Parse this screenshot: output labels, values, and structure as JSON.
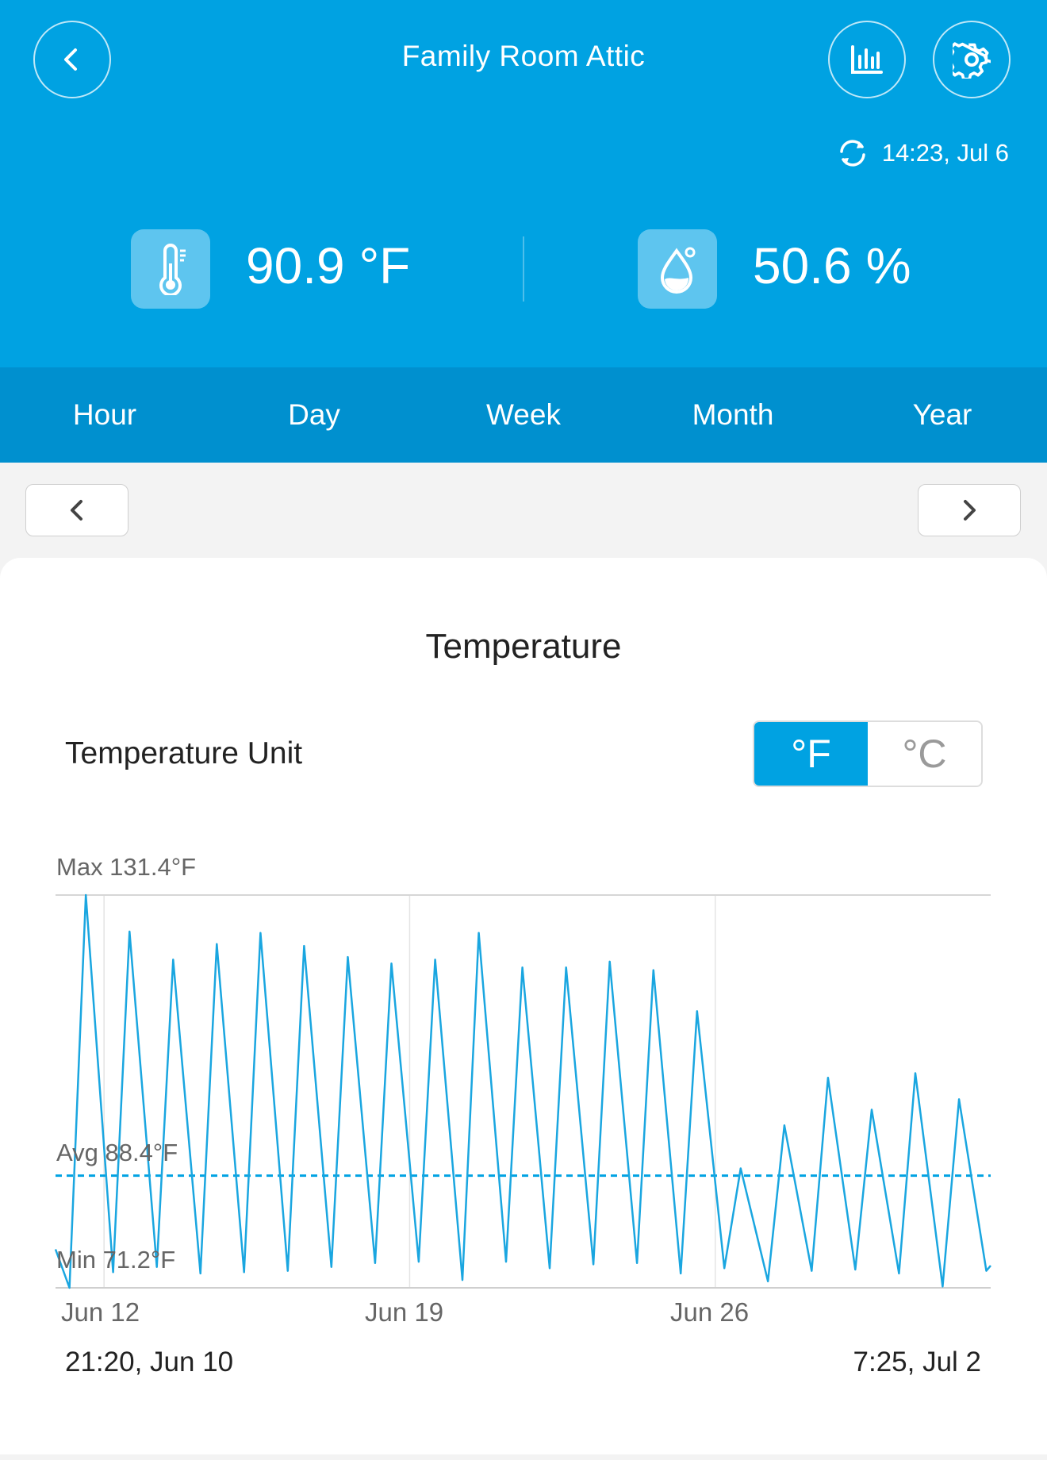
{
  "header": {
    "title": "Family Room Attic",
    "sync_time": "14:23,  Jul 6",
    "temperature": {
      "value": "90.9",
      "unit": "°F"
    },
    "humidity": {
      "value": "50.6",
      "unit": "%"
    }
  },
  "tabs": [
    "Hour",
    "Day",
    "Week",
    "Month",
    "Year"
  ],
  "card": {
    "title": "Temperature",
    "unit_label": "Temperature Unit",
    "unit_options": [
      "°F",
      "°C"
    ],
    "selected_unit": "°F",
    "range_start": "21:20,  Jun 10",
    "range_end": "7:25,  Jul 2"
  },
  "colors": {
    "primary": "#00a2e2",
    "tabbar": "#0090cf",
    "line": "#1aa6e0"
  },
  "chart_data": {
    "type": "line",
    "title": "",
    "max_label": "Max 131.4°F",
    "avg_label": "Avg 88.4°F",
    "min_label": "Min 71.2°F",
    "max": 131.4,
    "avg": 88.4,
    "min": 71.2,
    "ylim": [
      71.2,
      131.4
    ],
    "xlim": [
      "Jun 10 21:20",
      "Jul 2 07:25"
    ],
    "x_ticks": [
      "Jun 12",
      "Jun 19",
      "Jun 26"
    ],
    "grid": true,
    "daily_peaks": [
      {
        "x": "Jun 11 14:00",
        "y": 131.4
      },
      {
        "x": "Jun 12 14:00",
        "y": 125.8
      },
      {
        "x": "Jun 13 14:00",
        "y": 121.5
      },
      {
        "x": "Jun 14 14:00",
        "y": 123.9
      },
      {
        "x": "Jun 15 14:00",
        "y": 125.6
      },
      {
        "x": "Jun 16 14:00",
        "y": 123.6
      },
      {
        "x": "Jun 17 14:00",
        "y": 121.9
      },
      {
        "x": "Jun 18 14:00",
        "y": 120.9
      },
      {
        "x": "Jun 19 14:00",
        "y": 121.5
      },
      {
        "x": "Jun 20 14:00",
        "y": 125.6
      },
      {
        "x": "Jun 21 14:00",
        "y": 120.3
      },
      {
        "x": "Jun 22 14:00",
        "y": 120.3
      },
      {
        "x": "Jun 23 14:00",
        "y": 121.2
      },
      {
        "x": "Jun 24 14:00",
        "y": 119.9
      },
      {
        "x": "Jun 25 14:00",
        "y": 113.6
      },
      {
        "x": "Jun 26 14:00",
        "y": 89.5
      },
      {
        "x": "Jun 27 14:00",
        "y": 96.1
      },
      {
        "x": "Jun 28 14:00",
        "y": 103.4
      },
      {
        "x": "Jun 29 14:00",
        "y": 98.5
      },
      {
        "x": "Jun 30 14:00",
        "y": 104.1
      },
      {
        "x": "Jul 1 14:00",
        "y": 100.1
      }
    ],
    "daily_lows": [
      {
        "x": "Jun 10 21:20",
        "y": 77.1
      },
      {
        "x": "Jun 11 05:00",
        "y": 71.2
      },
      {
        "x": "Jun 12 05:00",
        "y": 73.6
      },
      {
        "x": "Jun 13 05:00",
        "y": 74.4
      },
      {
        "x": "Jun 14 05:00",
        "y": 73.4
      },
      {
        "x": "Jun 15 05:00",
        "y": 73.6
      },
      {
        "x": "Jun 16 05:00",
        "y": 73.8
      },
      {
        "x": "Jun 17 05:00",
        "y": 74.4
      },
      {
        "x": "Jun 18 05:00",
        "y": 75.0
      },
      {
        "x": "Jun 19 05:00",
        "y": 75.2
      },
      {
        "x": "Jun 20 05:00",
        "y": 72.4
      },
      {
        "x": "Jun 21 05:00",
        "y": 75.2
      },
      {
        "x": "Jun 22 05:00",
        "y": 74.2
      },
      {
        "x": "Jun 23 05:00",
        "y": 74.8
      },
      {
        "x": "Jun 24 05:00",
        "y": 75.0
      },
      {
        "x": "Jun 25 05:00",
        "y": 73.4
      },
      {
        "x": "Jun 26 05:00",
        "y": 74.2
      },
      {
        "x": "Jun 27 05:00",
        "y": 72.2
      },
      {
        "x": "Jun 28 05:00",
        "y": 73.8
      },
      {
        "x": "Jun 29 05:00",
        "y": 74.0
      },
      {
        "x": "Jun 30 05:00",
        "y": 73.4
      },
      {
        "x": "Jul 1 05:00",
        "y": 71.4
      },
      {
        "x": "Jul 2 05:00",
        "y": 73.8
      },
      {
        "x": "Jul 2 07:25",
        "y": 74.6
      }
    ]
  }
}
